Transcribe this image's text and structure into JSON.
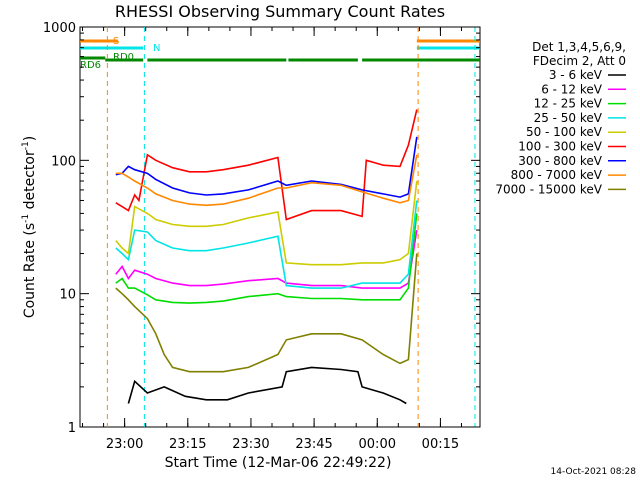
{
  "chart_data": {
    "type": "line",
    "title": "RHESSI Observing Summary Count Rates",
    "xlabel": "Start Time (12-Mar-06 22:49:22)",
    "ylabel_main": "Count Rate (s",
    "ylabel_sup1": "-1",
    "ylabel_mid": " detector",
    "ylabel_sup2": "-1",
    "ylabel_end": ")",
    "yscale": "log",
    "ylim": [
      1,
      1000
    ],
    "xlim_minutes": [
      0,
      95
    ],
    "x_ticks": [
      {
        "label": "23:00",
        "minute": 10.6
      },
      {
        "label": "23:15",
        "minute": 25.6
      },
      {
        "label": "23:30",
        "minute": 40.6
      },
      {
        "label": "23:45",
        "minute": 55.6
      },
      {
        "label": "00:00",
        "minute": 70.6
      },
      {
        "label": "00:15",
        "minute": 85.6
      }
    ],
    "y_ticks": [
      {
        "label": "1",
        "value": 1
      },
      {
        "label": "10",
        "value": 10
      },
      {
        "label": "100",
        "value": 100
      },
      {
        "label": "1000",
        "value": 1000
      }
    ],
    "legend_header": [
      "Det 1,3,4,5,6,9,",
      "FDecim 2, Att 0"
    ],
    "series": [
      {
        "name": "3 - 6 keV",
        "color": "#000000",
        "key": "s3_6",
        "points": [
          [
            11.5,
            1.5
          ],
          [
            13,
            2.2
          ],
          [
            16,
            1.8
          ],
          [
            20,
            2.0
          ],
          [
            25,
            1.7
          ],
          [
            30,
            1.6
          ],
          [
            35,
            1.6
          ],
          [
            40,
            1.8
          ],
          [
            48,
            2.0
          ],
          [
            49,
            2.6
          ],
          [
            55,
            2.8
          ],
          [
            62,
            2.7
          ],
          [
            66,
            2.6
          ],
          [
            67,
            2.0
          ],
          [
            72,
            1.8
          ],
          [
            76,
            1.6
          ],
          [
            77.5,
            1.5
          ]
        ]
      },
      {
        "name": "6 - 12 keV",
        "color": "#ff00ff",
        "key": "s6_12",
        "points": [
          [
            8.5,
            14
          ],
          [
            10,
            16
          ],
          [
            11.5,
            13
          ],
          [
            13,
            15
          ],
          [
            16,
            14
          ],
          [
            18,
            13
          ],
          [
            22,
            12
          ],
          [
            26,
            11.5
          ],
          [
            30,
            11.5
          ],
          [
            34,
            11.8
          ],
          [
            40,
            12.5
          ],
          [
            47,
            13
          ],
          [
            49,
            12
          ],
          [
            55,
            11.5
          ],
          [
            62,
            11.5
          ],
          [
            67,
            11
          ],
          [
            72,
            11
          ],
          [
            76,
            11
          ],
          [
            78,
            12
          ],
          [
            80,
            30
          ]
        ]
      },
      {
        "name": "12 - 25 keV",
        "color": "#00dd00",
        "key": "s12_25",
        "points": [
          [
            8.5,
            12
          ],
          [
            10,
            13
          ],
          [
            11.5,
            11
          ],
          [
            13,
            11
          ],
          [
            16,
            9.8
          ],
          [
            18,
            9
          ],
          [
            22,
            8.6
          ],
          [
            26,
            8.5
          ],
          [
            30,
            8.6
          ],
          [
            34,
            8.8
          ],
          [
            40,
            9.5
          ],
          [
            47,
            10
          ],
          [
            49,
            9.5
          ],
          [
            55,
            9.2
          ],
          [
            62,
            9.2
          ],
          [
            67,
            9
          ],
          [
            72,
            9
          ],
          [
            76,
            9
          ],
          [
            78,
            11
          ],
          [
            80,
            40
          ]
        ]
      },
      {
        "name": "25 - 50 keV",
        "color": "#00e5e5",
        "key": "s25_50",
        "points": [
          [
            8.5,
            22
          ],
          [
            10,
            20
          ],
          [
            11.5,
            18
          ],
          [
            13,
            30
          ],
          [
            16,
            29
          ],
          [
            18,
            25
          ],
          [
            22,
            22
          ],
          [
            26,
            21
          ],
          [
            30,
            21
          ],
          [
            34,
            22
          ],
          [
            40,
            24
          ],
          [
            47,
            27
          ],
          [
            49,
            11.5
          ],
          [
            55,
            11
          ],
          [
            62,
            11
          ],
          [
            67,
            12
          ],
          [
            72,
            12
          ],
          [
            76,
            12
          ],
          [
            78,
            14
          ],
          [
            80,
            50
          ]
        ]
      },
      {
        "name": "50 - 100 keV",
        "color": "#cccc00",
        "key": "s50_100",
        "points": [
          [
            8.5,
            25
          ],
          [
            10,
            22
          ],
          [
            11.5,
            20
          ],
          [
            13,
            45
          ],
          [
            16,
            40
          ],
          [
            18,
            36
          ],
          [
            22,
            33
          ],
          [
            26,
            32
          ],
          [
            30,
            32
          ],
          [
            34,
            33
          ],
          [
            40,
            37
          ],
          [
            47,
            41
          ],
          [
            49,
            17
          ],
          [
            55,
            16.5
          ],
          [
            62,
            16.5
          ],
          [
            67,
            17
          ],
          [
            72,
            17
          ],
          [
            76,
            18
          ],
          [
            78,
            20
          ],
          [
            80,
            70
          ]
        ]
      },
      {
        "name": "100 - 300 keV",
        "color": "#ff0000",
        "key": "s100_300",
        "points": [
          [
            8.5,
            48
          ],
          [
            10,
            45
          ],
          [
            11.5,
            42
          ],
          [
            13,
            55
          ],
          [
            14,
            50
          ],
          [
            16,
            110
          ],
          [
            18,
            100
          ],
          [
            22,
            88
          ],
          [
            26,
            82
          ],
          [
            30,
            82
          ],
          [
            34,
            85
          ],
          [
            40,
            92
          ],
          [
            47,
            105
          ],
          [
            49,
            36
          ],
          [
            55,
            42
          ],
          [
            62,
            42
          ],
          [
            67,
            38
          ],
          [
            68,
            100
          ],
          [
            72,
            92
          ],
          [
            76,
            90
          ],
          [
            78,
            130
          ],
          [
            80,
            240
          ]
        ]
      },
      {
        "name": "300 - 800 keV",
        "color": "#0000ff",
        "key": "s300_800",
        "points": [
          [
            8.5,
            78
          ],
          [
            10,
            80
          ],
          [
            11.5,
            90
          ],
          [
            13,
            85
          ],
          [
            16,
            80
          ],
          [
            18,
            72
          ],
          [
            22,
            62
          ],
          [
            26,
            57
          ],
          [
            30,
            55
          ],
          [
            34,
            56
          ],
          [
            40,
            60
          ],
          [
            47,
            70
          ],
          [
            49,
            65
          ],
          [
            55,
            70
          ],
          [
            62,
            66
          ],
          [
            67,
            60
          ],
          [
            72,
            56
          ],
          [
            76,
            53
          ],
          [
            78,
            56
          ],
          [
            80,
            150
          ]
        ]
      },
      {
        "name": "800 - 7000 keV",
        "color": "#ff8800",
        "key": "s800_7000",
        "points": [
          [
            8.5,
            80
          ],
          [
            10,
            80
          ],
          [
            11.5,
            75
          ],
          [
            13,
            70
          ],
          [
            16,
            62
          ],
          [
            18,
            56
          ],
          [
            22,
            50
          ],
          [
            26,
            47
          ],
          [
            30,
            46
          ],
          [
            34,
            47
          ],
          [
            40,
            52
          ],
          [
            47,
            62
          ],
          [
            49,
            62
          ],
          [
            55,
            68
          ],
          [
            62,
            65
          ],
          [
            67,
            58
          ],
          [
            72,
            52
          ],
          [
            76,
            48
          ],
          [
            78,
            50
          ],
          [
            80,
            110
          ]
        ]
      },
      {
        "name": "7000 - 15000 keV",
        "color": "#808000",
        "key": "s7000_15000",
        "points": [
          [
            8.5,
            11
          ],
          [
            10,
            10
          ],
          [
            11.5,
            9
          ],
          [
            13,
            8
          ],
          [
            16,
            6.5
          ],
          [
            18,
            5
          ],
          [
            20,
            3.5
          ],
          [
            22,
            2.8
          ],
          [
            26,
            2.6
          ],
          [
            34,
            2.6
          ],
          [
            40,
            2.8
          ],
          [
            47,
            3.5
          ],
          [
            49,
            4.5
          ],
          [
            55,
            5
          ],
          [
            62,
            5
          ],
          [
            67,
            4.5
          ],
          [
            72,
            3.5
          ],
          [
            76,
            3
          ],
          [
            78,
            3.2
          ],
          [
            80,
            20
          ]
        ]
      }
    ],
    "segments": {
      "saa": {
        "label": "S",
        "color": "#ff8800",
        "ranges": [
          [
            0,
            9
          ],
          [
            80,
            95
          ]
        ]
      },
      "night": {
        "label": "N",
        "color": "#00e5e5",
        "ranges": [
          [
            0,
            15
          ],
          [
            80,
            95
          ]
        ]
      },
      "decimation": {
        "label": "RD0",
        "color": "#008800",
        "ranges": [
          [
            6,
            15
          ],
          [
            16,
            49
          ],
          [
            49.5,
            66
          ],
          [
            67,
            95
          ]
        ]
      },
      "decim6": {
        "label": "RD6",
        "color": "#008800",
        "ranges": [
          [
            0,
            6
          ]
        ]
      }
    },
    "vlines": [
      {
        "minute": 6.5,
        "color": "#ff8800"
      },
      {
        "minute": 15.3,
        "color": "#00e5e5"
      },
      {
        "minute": 80.3,
        "color": "#ff8800"
      },
      {
        "minute": 93.8,
        "color": "#00e5e5"
      }
    ],
    "grid": false
  },
  "timestamp": "14-Oct-2021 08:28"
}
